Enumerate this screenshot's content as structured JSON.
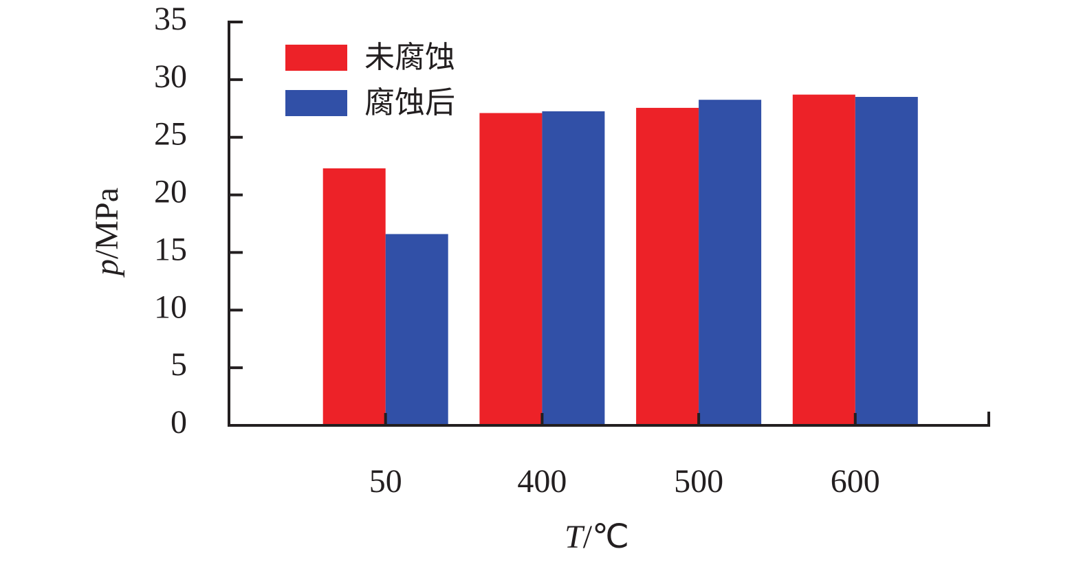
{
  "chart_data": {
    "type": "bar",
    "y_label": [
      "p",
      "/MPa"
    ],
    "x_label": [
      "T",
      "/℃"
    ],
    "categories": [
      "50",
      "400",
      "500",
      "600"
    ],
    "series": [
      {
        "name": "未腐蚀",
        "color": "#ed2228",
        "values": [
          22.3,
          27.1,
          27.55,
          28.7
        ]
      },
      {
        "name": "腐蚀后",
        "color": "#3150a7",
        "values": [
          16.6,
          27.25,
          28.25,
          28.5
        ]
      }
    ],
    "ylim": [
      0,
      35
    ],
    "yticks": [
      0,
      5,
      10,
      15,
      20,
      25,
      30,
      35
    ],
    "legend": "upper left"
  }
}
